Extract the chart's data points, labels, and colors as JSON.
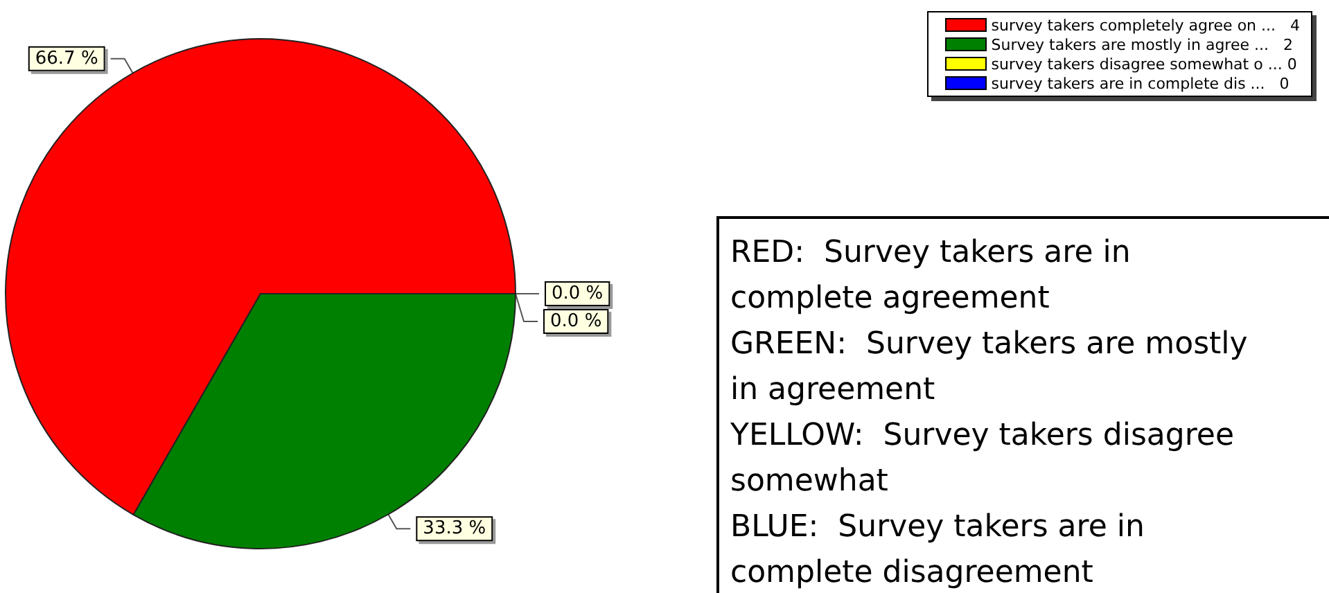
{
  "chart_data": {
    "type": "pie",
    "categories": [
      "survey takers completely agree on ...   4",
      "Survey takers are mostly in agree ...   2",
      "survey takers disagree somewhat o ... 0",
      "survey takers are in complete dis ...   0"
    ],
    "values": [
      66.7,
      33.3,
      0.0,
      0.0
    ],
    "colors": [
      "#ff0000",
      "#008000",
      "#ffff00",
      "#0000ff"
    ],
    "value_labels": [
      "66.7 %",
      "33.3 %",
      "0.0 %",
      "0.0 %"
    ],
    "legend": "top right",
    "annotations": [
      "RED:  Survey takers are in complete agreement",
      "GREEN:  Survey takers are mostly in agreement",
      "YELLOW:  Survey takers disagree somewhat",
      "BLUE:  Survey takers are in complete disagreement"
    ]
  }
}
